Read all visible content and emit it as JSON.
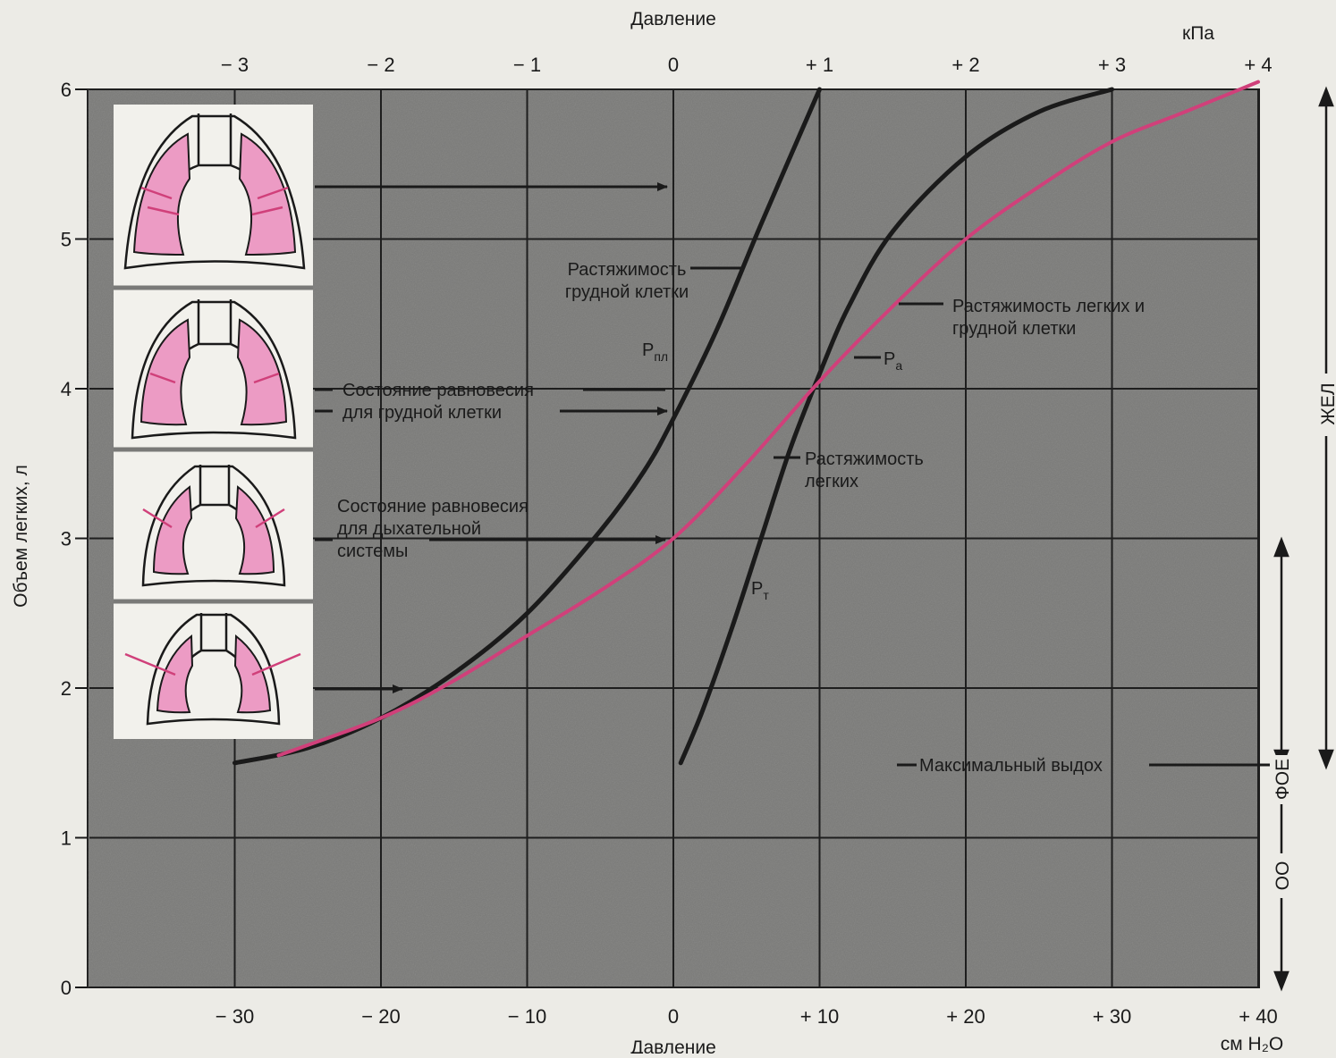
{
  "colors": {
    "plot_bg": "#7a7a78",
    "grid": "#1e1e1e",
    "curve_dark": "#1a1a1a",
    "curve_pink": "#d0407a",
    "lung_pink": "#ec9bc4",
    "panel_bg": "#f2f1ec",
    "page_bg": "#ecebe6"
  },
  "chart_data": {
    "type": "line",
    "title": "",
    "top_axis_label": "Давление",
    "top_axis_unit": "кПа",
    "bottom_axis_label": "Давление",
    "bottom_axis_unit": "см H₂O",
    "ylabel": "Объем легких, л",
    "xlim": [
      -40,
      40
    ],
    "ylim": [
      0,
      6
    ],
    "grid": true,
    "x_ticks": [
      -30,
      -20,
      -10,
      0,
      10,
      20,
      30,
      40
    ],
    "x_tick_labels": [
      "− 30",
      "− 20",
      "− 10",
      "0",
      "+ 10",
      "+ 20",
      "+ 30",
      "+ 40"
    ],
    "kpa_ticks": [
      -3,
      -2,
      -1,
      0,
      1,
      2,
      3,
      4
    ],
    "kpa_tick_labels": [
      "− 3",
      "− 2",
      "− 1",
      "0",
      "+ 1",
      "+ 2",
      "+ 3",
      "+ 4"
    ],
    "y_ticks": [
      0,
      1,
      2,
      3,
      4,
      5,
      6
    ],
    "y_tick_labels": [
      "0",
      "1",
      "2",
      "3",
      "4",
      "5",
      "6"
    ],
    "series": [
      {
        "color": "#1a1a1a",
        "x": [
          -30,
          -25,
          -20,
          -15,
          -10,
          -5,
          -2,
          0,
          3,
          6,
          10
        ],
        "y": [
          1.5,
          1.6,
          1.8,
          2.1,
          2.5,
          3.05,
          3.45,
          3.8,
          4.4,
          5.1,
          6.0
        ]
      },
      {
        "color": "#1a1a1a",
        "x": [
          0.5,
          2,
          4,
          6,
          8,
          10,
          12,
          15,
          20,
          25,
          30
        ],
        "y": [
          1.5,
          1.85,
          2.4,
          3.0,
          3.6,
          4.1,
          4.55,
          5.05,
          5.55,
          5.85,
          6.0
        ]
      },
      {
        "color": "#d0407a",
        "x": [
          -27,
          -20,
          -15,
          -10,
          -5,
          0,
          5,
          10,
          15,
          20,
          25,
          30,
          35,
          40
        ],
        "y": [
          1.55,
          1.8,
          2.05,
          2.35,
          2.65,
          3.0,
          3.5,
          4.05,
          4.55,
          5.0,
          5.35,
          5.65,
          5.85,
          6.05
        ]
      }
    ],
    "annotations": [
      {
        "lines": [
          "Растяжимость",
          "грудной клетки"
        ]
      },
      {
        "lines": [
          "Растяжимость легких и",
          "грудной клетки"
        ]
      },
      {
        "lines": [
          "Растяжимость",
          "легких"
        ]
      },
      {
        "lines": [
          "Состояние равновесия",
          "для грудной клетки"
        ]
      },
      {
        "lines": [
          "Состояние равновесия",
          "для дыхательной",
          "системы"
        ]
      },
      {
        "lines": [
          "Максимальный выдох"
        ]
      }
    ],
    "symbols": {
      "p_pl": "P",
      "p_pl_sub": "пл",
      "p_a": "P",
      "p_a_sub": "a",
      "p_t": "P",
      "p_t_sub": "т"
    },
    "volume_labels": {
      "vc": "ЖЕЛ",
      "frc": "ФОЕ",
      "rv": "ОО"
    }
  }
}
